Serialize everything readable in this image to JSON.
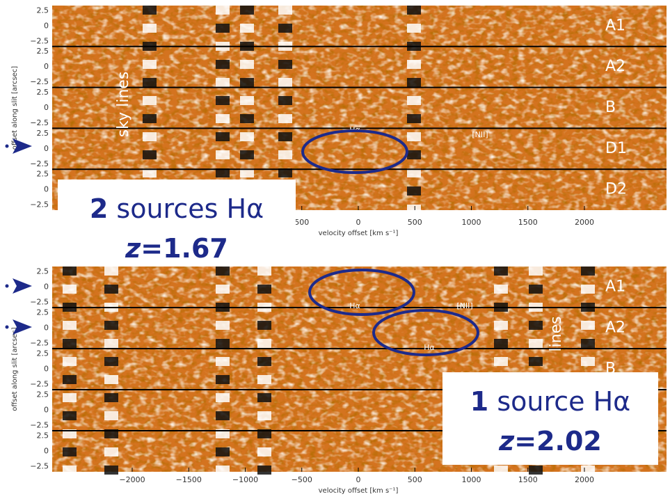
{
  "top_panel": {
    "y_axis_label": "offset along slit [arcsec]",
    "y_ticks": [
      "2.5",
      "0",
      "−2.5"
    ],
    "strips": [
      "A1",
      "A2",
      "B",
      "D1",
      "D2"
    ],
    "x_ticks": [
      "500",
      "0",
      "500",
      "1000",
      "1500",
      "2000"
    ],
    "x_axis_label": "velocity offset [km s⁻¹]",
    "annotations": {
      "sky_lines": "sky lines",
      "halpha": "Hα",
      "nii": "[NII]"
    },
    "callout": {
      "count": "2",
      "text": "sources Hα",
      "redshift_var": "z",
      "redshift": "=1.67"
    }
  },
  "bottom_panel": {
    "y_axis_label": "offset along slit [arcsec]",
    "y_ticks": [
      "2.5",
      "0",
      "−2.5"
    ],
    "strips": [
      "A1",
      "A2",
      "B"
    ],
    "x_ticks": [
      "−2000",
      "−1500",
      "−1000",
      "−500",
      "0",
      "500",
      "1000",
      "1500",
      "2000"
    ],
    "x_axis_label": "velocity offset [km s⁻¹]",
    "annotations": {
      "sky_lines": "lines",
      "halpha_a1": "Hα",
      "nii": "[NII]",
      "halpha_a2": "Hα"
    },
    "callout": {
      "count": "1",
      "text": "source Hα",
      "redshift_var": "z",
      "redshift": "=2.02"
    }
  }
}
